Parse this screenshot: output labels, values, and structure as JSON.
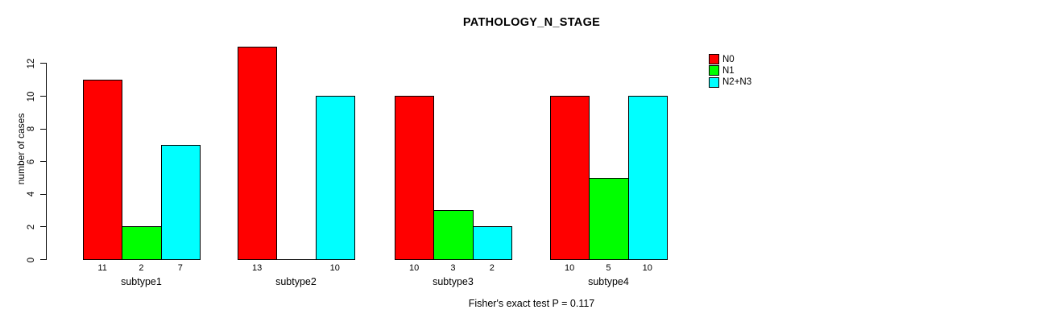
{
  "chart_data": {
    "type": "bar",
    "grouped": true,
    "title": "PATHOLOGY_N_STAGE",
    "ylabel": "number of cases",
    "xlabel": "",
    "categories": [
      "subtype1",
      "subtype2",
      "subtype3",
      "subtype4"
    ],
    "series": [
      {
        "name": "N0",
        "color": "#ff0000",
        "values": [
          11,
          13,
          10,
          10
        ]
      },
      {
        "name": "N1",
        "color": "#00ff00",
        "values": [
          2,
          0,
          3,
          5
        ]
      },
      {
        "name": "N2+N3",
        "color": "#00ffff",
        "values": [
          7,
          10,
          2,
          10
        ]
      }
    ],
    "bar_value_labels": [
      [
        "11",
        "2",
        "7"
      ],
      [
        "13",
        "",
        "10"
      ],
      [
        "10",
        "3",
        "2"
      ],
      [
        "10",
        "5",
        "10"
      ]
    ],
    "yticks": [
      0,
      2,
      4,
      6,
      8,
      10,
      12
    ],
    "ylim": [
      0,
      13
    ],
    "grid": false,
    "legend_position": "right",
    "legend": [
      {
        "label": "N0",
        "color": "#ff0000"
      },
      {
        "label": "N1",
        "color": "#00ff00"
      },
      {
        "label": "N2+N3",
        "color": "#00ffff"
      }
    ],
    "annotation": "Fisher's exact test P = 0.117",
    "bar_border_color": "#000000",
    "axis_color": "#000000"
  }
}
